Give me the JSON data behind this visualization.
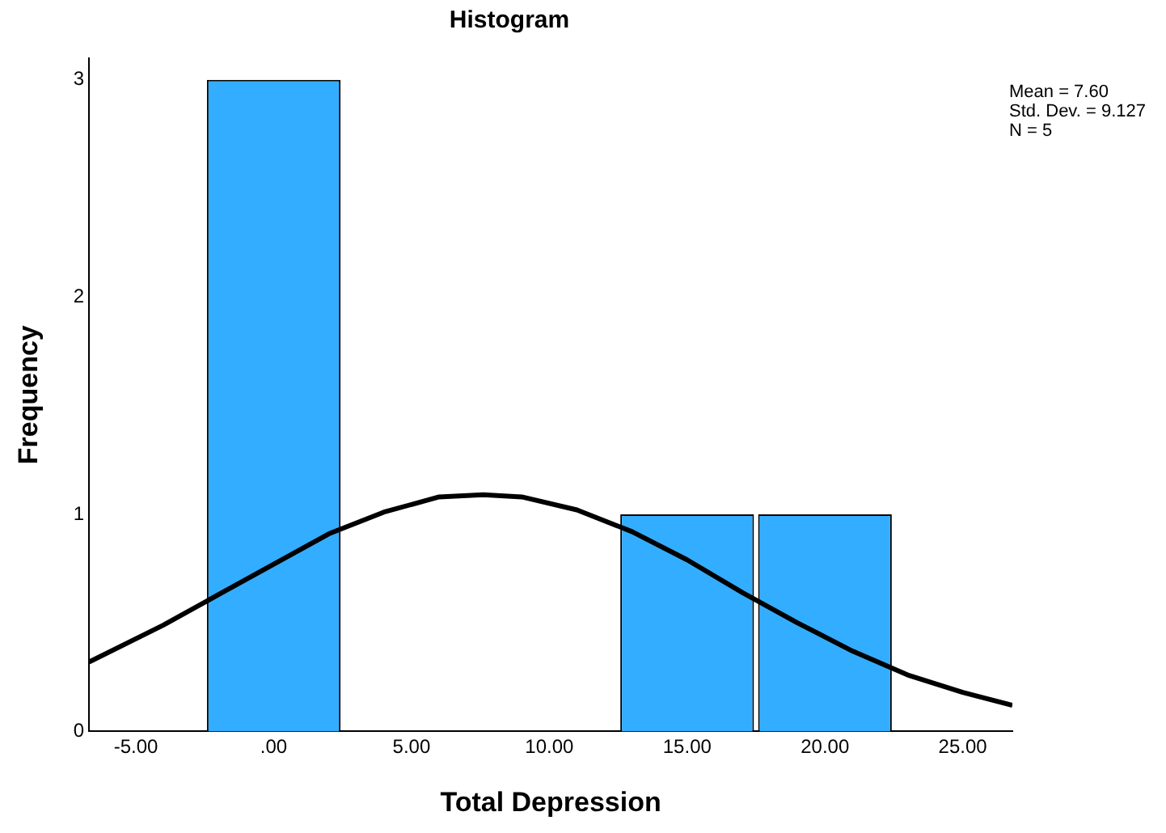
{
  "chart_data": {
    "type": "histogram",
    "title": "Histogram",
    "xlabel": "Total Depression",
    "ylabel": "Frequency",
    "bins": [
      -2.5,
      2.5,
      7.5,
      12.5,
      17.5,
      22.5
    ],
    "values": [
      3,
      0,
      0,
      1,
      1
    ],
    "color": "#33adff",
    "series": [
      {
        "type": "line",
        "color": "#000000",
        "x": [
          -6.7,
          -4,
          -2,
          0,
          2,
          4,
          6,
          7.6,
          9,
          11,
          13,
          15,
          17,
          19,
          21,
          23,
          25,
          26.8
        ],
        "values": [
          0.32,
          0.49,
          0.63,
          0.77,
          0.91,
          1.01,
          1.08,
          1.09,
          1.08,
          1.02,
          0.92,
          0.79,
          0.64,
          0.5,
          0.37,
          0.26,
          0.18,
          0.12
        ]
      }
    ],
    "xlim": [
      -6.7,
      26.8
    ],
    "xticks": [
      {
        "value": -5,
        "label": "-5.00"
      },
      {
        "value": 0,
        "label": ".00"
      },
      {
        "value": 5,
        "label": "5.00"
      },
      {
        "value": 10,
        "label": "10.00"
      },
      {
        "value": 15,
        "label": "15.00"
      },
      {
        "value": 20,
        "label": "20.00"
      },
      {
        "value": 25,
        "label": "25.00"
      }
    ],
    "ylim": [
      0,
      3.1
    ],
    "yticks": [
      0,
      1,
      2,
      3
    ],
    "grid": false,
    "legend": false,
    "marker": "none",
    "annotations": [
      "Mean = 7.60\nStd. Dev. = 9.127\nN = 5"
    ]
  }
}
